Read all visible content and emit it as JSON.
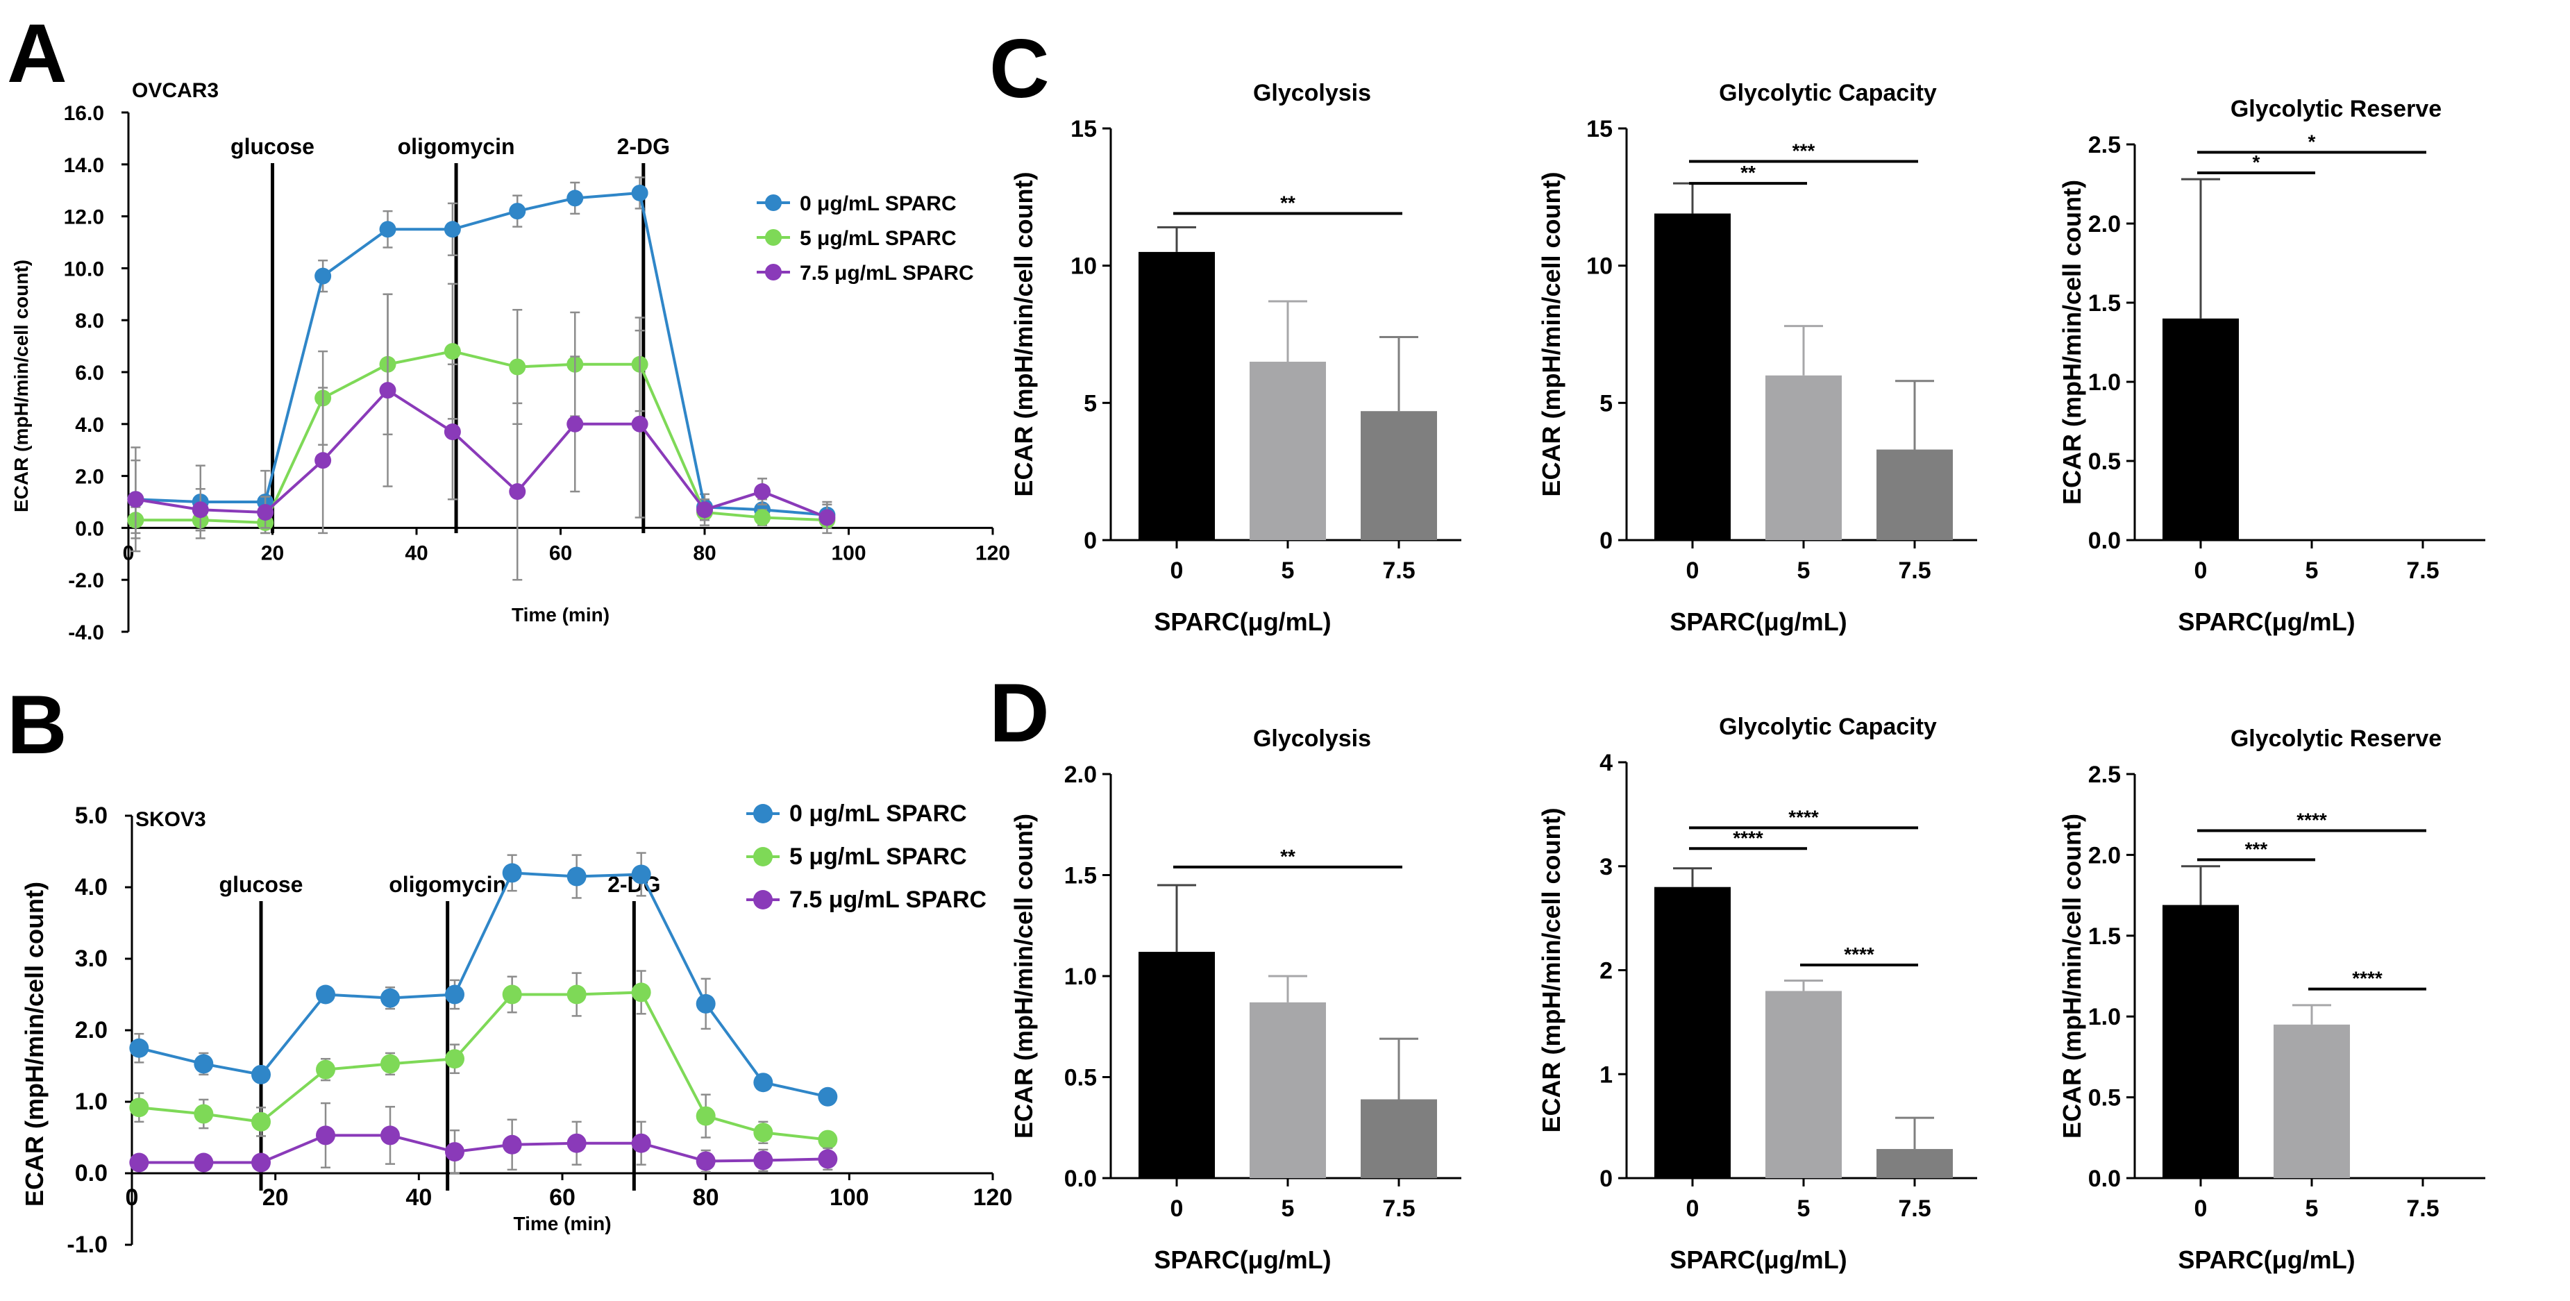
{
  "colors": {
    "blue": "#2f86c8",
    "green": "#7ed957",
    "purple": "#8a3ab9",
    "bar0": "#000000",
    "bar5": "#a7a7a9",
    "bar75": "#7f7f7f",
    "axis": "#000000",
    "error": "#8c8c8c"
  },
  "panels": {
    "A": {
      "letter": "A",
      "cell": "OVCAR3"
    },
    "B": {
      "letter": "B",
      "cell": "SKOV3"
    },
    "C": {
      "letter": "C"
    },
    "D": {
      "letter": "D"
    }
  },
  "chart_data": [
    {
      "id": "A",
      "type": "line",
      "title": "OVCAR3",
      "xlabel": "Time (min)",
      "ylabel": "ECAR (mpH/min/cell count)",
      "xlim": [
        0,
        120
      ],
      "ylim": [
        -4,
        16
      ],
      "xticks": [
        0,
        20,
        40,
        60,
        80,
        100,
        120
      ],
      "xtick_labels": [
        "0",
        "20",
        "40",
        "60",
        "80",
        "100",
        "120"
      ],
      "yticks": [
        -4,
        -2,
        0,
        2,
        4,
        6,
        8,
        10,
        12,
        14,
        16
      ],
      "ytick_labels": [
        "-4.0",
        "-2.0",
        "0.0",
        "2.0",
        "4.0",
        "6.0",
        "8.0",
        "10.0",
        "12.0",
        "14.0",
        "16.0"
      ],
      "injections": [
        {
          "x": 20,
          "label": "glucose"
        },
        {
          "x": 45.5,
          "label": "oligomycin"
        },
        {
          "x": 71.5,
          "label": "2-DG"
        }
      ],
      "legend_position": "right",
      "series": [
        {
          "name": "0 μg/mL SPARC",
          "color": "#2f86c8",
          "x": [
            1,
            10,
            19,
            27,
            36,
            45,
            54,
            62,
            71,
            80,
            88,
            97
          ],
          "y": [
            1.1,
            1.0,
            1.0,
            9.7,
            11.5,
            11.5,
            12.2,
            12.7,
            12.9,
            0.8,
            0.7,
            0.5
          ],
          "err": [
            2.0,
            1.4,
            1.2,
            0.6,
            0.7,
            1.0,
            0.6,
            0.6,
            0.6,
            0.5,
            0.4,
            0.4
          ]
        },
        {
          "name": "5 μg/mL SPARC",
          "color": "#7ed957",
          "x": [
            1,
            10,
            19,
            27,
            36,
            45,
            54,
            62,
            71,
            80,
            88,
            97
          ],
          "y": [
            0.3,
            0.3,
            0.2,
            5.0,
            6.3,
            6.8,
            6.2,
            6.3,
            6.3,
            0.6,
            0.4,
            0.3
          ],
          "err": [
            0.5,
            0.4,
            0.4,
            1.8,
            2.7,
            2.6,
            2.2,
            2.0,
            1.8,
            0.5,
            0.3,
            0.3
          ]
        },
        {
          "name": "7.5 μg/mL SPARC",
          "color": "#8a3ab9",
          "x": [
            1,
            10,
            19,
            27,
            36,
            45,
            54,
            62,
            71,
            80,
            88,
            97
          ],
          "y": [
            1.1,
            0.7,
            0.6,
            2.6,
            5.3,
            3.7,
            1.4,
            4.0,
            4.0,
            0.7,
            1.4,
            0.4
          ],
          "err": [
            1.5,
            0.8,
            0.6,
            2.8,
            3.7,
            2.6,
            3.4,
            2.6,
            3.6,
            0.4,
            0.5,
            0.6
          ]
        }
      ]
    },
    {
      "id": "B",
      "type": "line",
      "title": "SKOV3",
      "xlabel": "Time (min)",
      "ylabel": "ECAR (mpH/min/cell count)",
      "xlim": [
        0,
        120
      ],
      "ylim": [
        -1,
        5
      ],
      "xticks": [
        0,
        20,
        40,
        60,
        80,
        100,
        120
      ],
      "xtick_labels": [
        "0",
        "20",
        "40",
        "60",
        "80",
        "100",
        "120"
      ],
      "yticks": [
        -1,
        0,
        1,
        2,
        3,
        4,
        5
      ],
      "ytick_labels": [
        "-1.0",
        "0.0",
        "1.0",
        "2.0",
        "3.0",
        "4.0",
        "5.0"
      ],
      "injections": [
        {
          "x": 18,
          "label": "glucose"
        },
        {
          "x": 44,
          "label": "oligomycin"
        },
        {
          "x": 70,
          "label": "2-DG"
        }
      ],
      "legend_position": "right",
      "series": [
        {
          "name": "0 μg/mL SPARC",
          "color": "#2f86c8",
          "x": [
            1,
            10,
            18,
            27,
            36,
            45,
            53,
            62,
            71,
            80,
            88,
            97
          ],
          "y": [
            1.75,
            1.53,
            1.38,
            2.5,
            2.45,
            2.5,
            4.2,
            4.15,
            4.18,
            2.37,
            1.27,
            1.07
          ],
          "err": [
            0.2,
            0.15,
            0.1,
            0.1,
            0.15,
            0.2,
            0.25,
            0.3,
            0.3,
            0.35,
            0.1,
            0.05
          ]
        },
        {
          "name": "5 μg/mL SPARC",
          "color": "#7ed957",
          "x": [
            1,
            10,
            18,
            27,
            36,
            45,
            53,
            62,
            71,
            80,
            88,
            97
          ],
          "y": [
            0.92,
            0.83,
            0.72,
            1.45,
            1.53,
            1.6,
            2.5,
            2.5,
            2.53,
            0.8,
            0.57,
            0.47
          ],
          "err": [
            0.2,
            0.2,
            0.2,
            0.15,
            0.15,
            0.2,
            0.25,
            0.3,
            0.3,
            0.3,
            0.15,
            0.08
          ]
        },
        {
          "name": "7.5 μg/mL SPARC",
          "color": "#8a3ab9",
          "x": [
            1,
            10,
            18,
            27,
            36,
            45,
            53,
            62,
            71,
            80,
            88,
            97
          ],
          "y": [
            0.15,
            0.15,
            0.15,
            0.53,
            0.53,
            0.3,
            0.4,
            0.42,
            0.42,
            0.17,
            0.18,
            0.2
          ],
          "err": [
            0.1,
            0.1,
            0.1,
            0.45,
            0.4,
            0.3,
            0.35,
            0.3,
            0.3,
            0.15,
            0.15,
            0.15
          ]
        }
      ]
    },
    {
      "id": "C1",
      "type": "bar",
      "title": "Glycolysis",
      "xlabel": "SPARC(μg/mL)",
      "ylabel": "ECAR (mpH/min/cell count)",
      "categories": [
        "0",
        "5",
        "7.5"
      ],
      "values": [
        10.5,
        6.5,
        4.7
      ],
      "errors": [
        0.9,
        2.2,
        2.7
      ],
      "ylim": [
        0,
        15
      ],
      "yticks": [
        0,
        5,
        10,
        15
      ],
      "ytick_labels": [
        "0",
        "5",
        "10",
        "15"
      ],
      "significance": [
        {
          "from": 0,
          "to": 2,
          "label": "**",
          "y": 11.9
        }
      ]
    },
    {
      "id": "C2",
      "type": "bar",
      "title": "Glycolytic Capacity",
      "xlabel": "SPARC(μg/mL)",
      "ylabel": "ECAR (mpH/min/cell count)",
      "categories": [
        "0",
        "5",
        "7.5"
      ],
      "values": [
        11.9,
        6.0,
        3.3
      ],
      "errors": [
        1.1,
        1.8,
        2.5
      ],
      "ylim": [
        0,
        15
      ],
      "yticks": [
        0,
        5,
        10,
        15
      ],
      "ytick_labels": [
        "0",
        "5",
        "10",
        "15"
      ],
      "significance": [
        {
          "from": 0,
          "to": 1,
          "label": "**",
          "y": 13.0
        },
        {
          "from": 0,
          "to": 2,
          "label": "***",
          "y": 13.8
        }
      ]
    },
    {
      "id": "C3",
      "type": "bar",
      "title": "Glycolytic Reserve",
      "xlabel": "SPARC(μg/mL)",
      "ylabel": "ECAR (mpH/min/cell count)",
      "categories": [
        "0",
        "5",
        "7.5"
      ],
      "values": [
        1.4,
        0,
        0
      ],
      "errors": [
        0.88,
        0,
        0
      ],
      "ylim": [
        0,
        2.5
      ],
      "yticks": [
        0,
        0.5,
        1.0,
        1.5,
        2.0,
        2.5
      ],
      "ytick_labels": [
        "0.0",
        "0.5",
        "1.0",
        "1.5",
        "2.0",
        "2.5"
      ],
      "significance": [
        {
          "from": 0,
          "to": 1,
          "label": "*",
          "y": 2.32
        },
        {
          "from": 0,
          "to": 2,
          "label": "*",
          "y": 2.45
        }
      ]
    },
    {
      "id": "D1",
      "type": "bar",
      "title": "Glycolysis",
      "xlabel": "SPARC(μg/mL)",
      "ylabel": "ECAR (mpH/min/cell count)",
      "categories": [
        "0",
        "5",
        "7.5"
      ],
      "values": [
        1.12,
        0.87,
        0.39
      ],
      "errors": [
        0.33,
        0.13,
        0.3
      ],
      "ylim": [
        0,
        2.0
      ],
      "yticks": [
        0,
        0.5,
        1.0,
        1.5,
        2.0
      ],
      "ytick_labels": [
        "0.0",
        "0.5",
        "1.0",
        "1.5",
        "2.0"
      ],
      "significance": [
        {
          "from": 0,
          "to": 2,
          "label": "**",
          "y": 1.54
        }
      ]
    },
    {
      "id": "D2",
      "type": "bar",
      "title": "Glycolytic Capacity",
      "xlabel": "SPARC(μg/mL)",
      "ylabel": "ECAR (mpH/min/cell count)",
      "categories": [
        "0",
        "5",
        "7.5"
      ],
      "values": [
        2.8,
        1.8,
        0.28
      ],
      "errors": [
        0.18,
        0.1,
        0.3
      ],
      "ylim": [
        0,
        4
      ],
      "yticks": [
        0,
        1,
        2,
        3,
        4
      ],
      "ytick_labels": [
        "0",
        "1",
        "2",
        "3",
        "4"
      ],
      "significance": [
        {
          "from": 0,
          "to": 1,
          "label": "****",
          "y": 3.17
        },
        {
          "from": 0,
          "to": 2,
          "label": "****",
          "y": 3.37
        },
        {
          "from": 1,
          "to": 2,
          "label": "****",
          "y": 2.05
        }
      ]
    },
    {
      "id": "D3",
      "type": "bar",
      "title": "Glycolytic Reserve",
      "xlabel": "SPARC(μg/mL)",
      "ylabel": "ECAR (mpH/min/cell count)",
      "categories": [
        "0",
        "5",
        "7.5"
      ],
      "values": [
        1.69,
        0.95,
        0
      ],
      "errors": [
        0.24,
        0.12,
        0
      ],
      "ylim": [
        0,
        2.5
      ],
      "yticks": [
        0,
        0.5,
        1.0,
        1.5,
        2.0,
        2.5
      ],
      "ytick_labels": [
        "0.0",
        "0.5",
        "1.0",
        "1.5",
        "2.0",
        "2.5"
      ],
      "significance": [
        {
          "from": 0,
          "to": 1,
          "label": "***",
          "y": 1.97
        },
        {
          "from": 0,
          "to": 2,
          "label": "****",
          "y": 2.15
        },
        {
          "from": 1,
          "to": 2,
          "label": "****",
          "y": 1.17
        }
      ]
    }
  ]
}
